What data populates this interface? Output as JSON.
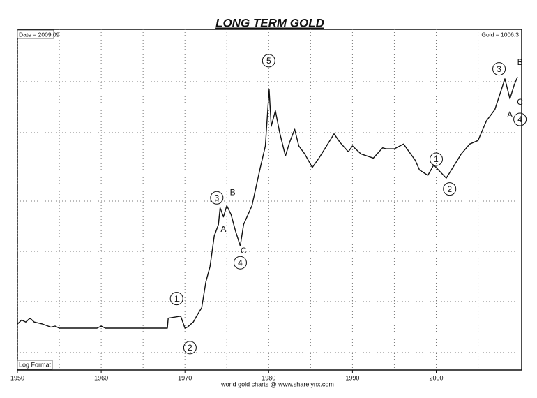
{
  "chart_data": {
    "type": "line",
    "title": "LONG TERM GOLD",
    "date_label": "Date = 2009.09",
    "price_label": "Gold = 1006.3",
    "scale_note": "Log Format",
    "source": "world gold charts @ www.sharelynx.com",
    "log_scale": true,
    "grid": true,
    "color": "#111111",
    "xlim": [
      1950,
      2010.2
    ],
    "xticks": [
      1950,
      1960,
      1970,
      1980,
      1990,
      2000
    ],
    "ylim": [
      20,
      1900
    ],
    "x": [
      1950,
      1950.5,
      1951,
      1951.5,
      1952,
      1953,
      1954,
      1954.5,
      1955,
      1959.5,
      1960,
      1960.5,
      1962,
      1967.9,
      1968,
      1969.3,
      1969.5,
      1970,
      1970.3,
      1971,
      1971.5,
      1972,
      1972.5,
      1973,
      1973.5,
      1974,
      1974.2,
      1974.6,
      1975,
      1975.5,
      1976,
      1976.6,
      1977,
      1978,
      1979,
      1979.6,
      1980.05,
      1980.3,
      1980.8,
      1981.3,
      1982,
      1982.5,
      1983.1,
      1983.6,
      1984.3,
      1985.2,
      1986,
      1987.8,
      1988.5,
      1989.5,
      1990,
      1991,
      1992.5,
      1993.6,
      1994,
      1995,
      1996.1,
      1997.5,
      1998,
      1999,
      1999.7,
      2001.2,
      2002,
      2003,
      2004,
      2005,
      2006,
      2007,
      2008.2,
      2008.8,
      2009.3,
      2009.7
    ],
    "values": [
      37,
      39,
      38,
      40,
      38,
      37,
      35.5,
      36,
      35,
      35,
      36,
      35,
      35,
      35,
      40,
      41,
      41,
      35,
      35.5,
      38,
      42,
      46,
      65,
      80,
      120,
      140,
      175,
      155,
      180,
      160,
      130,
      105,
      140,
      180,
      300,
      400,
      850,
      520,
      640,
      480,
      350,
      420,
      500,
      400,
      360,
      300,
      340,
      470,
      420,
      370,
      400,
      360,
      340,
      390,
      385,
      385,
      410,
      330,
      290,
      270,
      310,
      260,
      300,
      360,
      410,
      430,
      560,
      650,
      980,
      750,
      900,
      1006
    ],
    "annotations": [
      {
        "text": "1",
        "x": 1969,
        "y": 52,
        "circled": true
      },
      {
        "text": "2",
        "x": 1970.6,
        "y": 27,
        "circled": true
      },
      {
        "text": "3",
        "x": 1973.8,
        "y": 200,
        "circled": true
      },
      {
        "text": "A",
        "x": 1974.6,
        "y": 132,
        "circled": false
      },
      {
        "text": "B",
        "x": 1975.7,
        "y": 215,
        "circled": false
      },
      {
        "text": "C",
        "x": 1977,
        "y": 99,
        "circled": false
      },
      {
        "text": "4",
        "x": 1976.6,
        "y": 84,
        "circled": true
      },
      {
        "text": "5",
        "x": 1980,
        "y": 1250,
        "circled": true
      },
      {
        "text": "1",
        "x": 2000,
        "y": 335,
        "circled": true
      },
      {
        "text": "2",
        "x": 2001.6,
        "y": 225,
        "circled": true
      },
      {
        "text": "3",
        "x": 2007.5,
        "y": 1120,
        "circled": true
      },
      {
        "text": "A",
        "x": 2008.8,
        "y": 610,
        "circled": false
      },
      {
        "text": "B",
        "x": 2010,
        "y": 1230,
        "circled": false
      },
      {
        "text": "C",
        "x": 2010,
        "y": 720,
        "circled": false
      },
      {
        "text": "4",
        "x": 2010,
        "y": 570,
        "circled": true
      }
    ]
  }
}
